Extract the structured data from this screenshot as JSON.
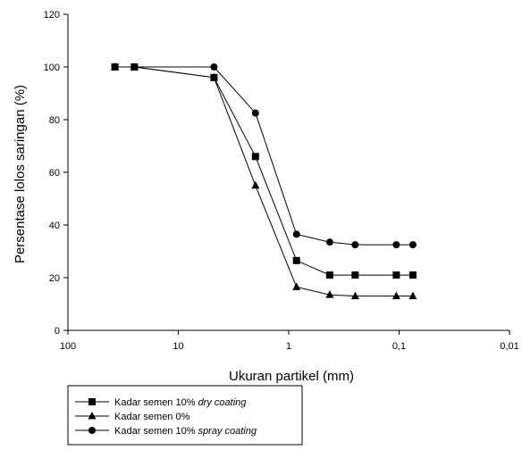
{
  "chart_data": {
    "type": "line",
    "x_scale": "log",
    "x_reversed": true,
    "xlabel": "Ukuran partikel (mm)",
    "ylabel": "Persentase lolos saringan (%)",
    "xlim": [
      100,
      0.01
    ],
    "ylim": [
      0,
      120
    ],
    "x_ticks": [
      100,
      10,
      1,
      0.1,
      0.01
    ],
    "x_tick_labels": [
      "100",
      "10",
      "1",
      "0,1",
      "0,01"
    ],
    "y_ticks": [
      0,
      20,
      40,
      60,
      80,
      100,
      120
    ],
    "y_tick_labels": [
      "0",
      "20",
      "40",
      "60",
      "80",
      "100",
      "120"
    ],
    "grid": false,
    "legend_position": "bottom-left, below plot",
    "series": [
      {
        "name_prefix": "Kadar semen 10% ",
        "name_italic": "dry coating",
        "marker": "square",
        "x": [
          37.5,
          25,
          4.75,
          2,
          0.85,
          0.425,
          0.25,
          0.106,
          0.075
        ],
        "y": [
          100,
          100,
          96,
          66,
          26.5,
          21,
          21,
          21,
          21
        ]
      },
      {
        "name_prefix": "Kadar semen 0%",
        "name_italic": "",
        "marker": "triangle",
        "x": [
          37.5,
          25,
          4.75,
          2,
          0.85,
          0.425,
          0.25,
          0.106,
          0.075
        ],
        "y": [
          100,
          100,
          96,
          55,
          16.5,
          13.5,
          13,
          13,
          13
        ]
      },
      {
        "name_prefix": "Kadar semen 10% ",
        "name_italic": "spray coating",
        "marker": "circle",
        "x": [
          37.5,
          25,
          4.75,
          2,
          0.85,
          0.425,
          0.25,
          0.106,
          0.075
        ],
        "y": [
          100,
          100,
          100,
          82.5,
          36.5,
          33.5,
          32.5,
          32.5,
          32.5
        ]
      }
    ]
  }
}
